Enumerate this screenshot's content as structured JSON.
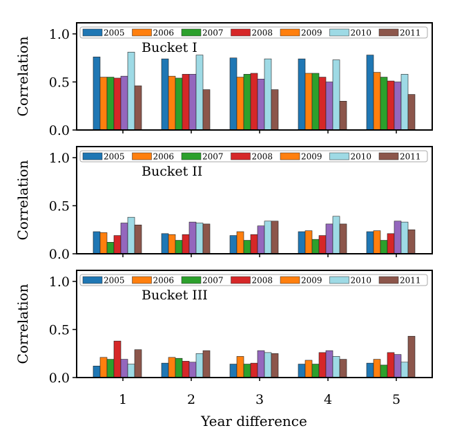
{
  "chart_data": {
    "type": "bar",
    "xlabel": "Year difference",
    "categories": [
      "1",
      "2",
      "3",
      "4",
      "5"
    ],
    "legend_placement": "top",
    "grid": false,
    "colors": {
      "2005": "#1f77b4",
      "2006": "#ff7f0e",
      "2007": "#2ca02c",
      "2008": "#d62728",
      "2009": "#ff7f0e",
      "2010": "#9edae5",
      "2011": "#8c564b",
      "bar_6_fill": "#9467bd"
    },
    "panels": [
      {
        "label": "Bucket I",
        "ylabel": "Correlation",
        "ylim": [
          0,
          1.0
        ],
        "yticks": [
          "0.0",
          "0.5",
          "1.0"
        ],
        "series": [
          {
            "name": "2005",
            "values": [
              0.76,
              0.74,
              0.75,
              0.74,
              0.78
            ]
          },
          {
            "name": "2006",
            "values": [
              0.55,
              0.56,
              0.55,
              0.59,
              0.6
            ]
          },
          {
            "name": "2007",
            "values": [
              0.55,
              0.54,
              0.58,
              0.59,
              0.55
            ]
          },
          {
            "name": "2008",
            "values": [
              0.54,
              0.58,
              0.59,
              0.55,
              0.51
            ]
          },
          {
            "name": "2009",
            "values": [
              0.56,
              0.58,
              0.53,
              0.5,
              0.5
            ]
          },
          {
            "name": "2010",
            "values": [
              0.81,
              0.78,
              0.74,
              0.73,
              0.58
            ]
          },
          {
            "name": "2011",
            "values": [
              0.46,
              0.42,
              0.42,
              0.3,
              0.37
            ]
          }
        ]
      },
      {
        "label": "Bucket II",
        "ylabel": "Correlation",
        "ylim": [
          0,
          1.0
        ],
        "yticks": [
          "0.0",
          "0.5",
          "1.0"
        ],
        "series": [
          {
            "name": "2005",
            "values": [
              0.23,
              0.21,
              0.19,
              0.23,
              0.23
            ]
          },
          {
            "name": "2006",
            "values": [
              0.22,
              0.2,
              0.23,
              0.24,
              0.24
            ]
          },
          {
            "name": "2007",
            "values": [
              0.12,
              0.14,
              0.14,
              0.15,
              0.14
            ]
          },
          {
            "name": "2008",
            "values": [
              0.19,
              0.2,
              0.2,
              0.19,
              0.21
            ]
          },
          {
            "name": "2009",
            "values": [
              0.32,
              0.33,
              0.29,
              0.31,
              0.34
            ]
          },
          {
            "name": "2010",
            "values": [
              0.38,
              0.32,
              0.34,
              0.39,
              0.33
            ]
          },
          {
            "name": "2011",
            "values": [
              0.3,
              0.31,
              0.34,
              0.31,
              0.25
            ]
          }
        ]
      },
      {
        "label": "Bucket III",
        "ylabel": "Correlation",
        "ylim": [
          0,
          1.0
        ],
        "yticks": [
          "0.0",
          "0.5",
          "1.0"
        ],
        "series": [
          {
            "name": "2005",
            "values": [
              0.12,
              0.15,
              0.14,
              0.14,
              0.15
            ]
          },
          {
            "name": "2006",
            "values": [
              0.21,
              0.21,
              0.22,
              0.18,
              0.19
            ]
          },
          {
            "name": "2007",
            "values": [
              0.19,
              0.2,
              0.14,
              0.14,
              0.13
            ]
          },
          {
            "name": "2008",
            "values": [
              0.38,
              0.17,
              0.15,
              0.26,
              0.26
            ]
          },
          {
            "name": "2009",
            "values": [
              0.19,
              0.16,
              0.28,
              0.28,
              0.24
            ]
          },
          {
            "name": "2010",
            "values": [
              0.14,
              0.25,
              0.26,
              0.22,
              0.16
            ]
          },
          {
            "name": "2011",
            "values": [
              0.29,
              0.28,
              0.25,
              0.19,
              0.43
            ]
          }
        ]
      }
    ]
  }
}
